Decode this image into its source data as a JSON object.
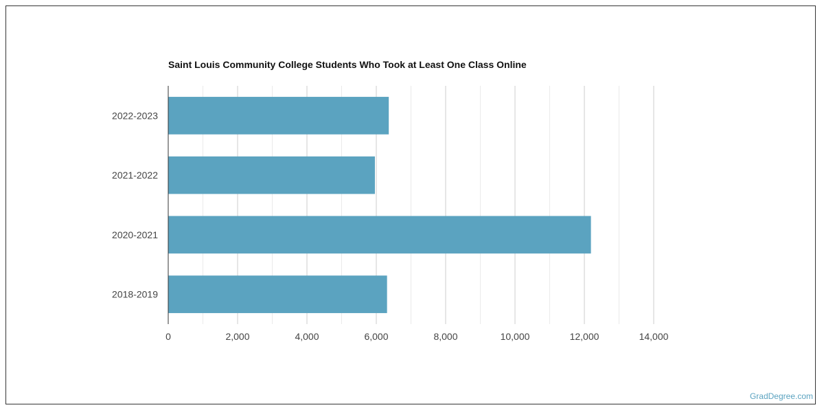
{
  "chart_data": {
    "type": "bar",
    "orientation": "horizontal",
    "title": "Saint Louis Community College Students Who Took at Least One Class Online",
    "categories": [
      "2022-2023",
      "2021-2022",
      "2020-2021",
      "2018-2019"
    ],
    "values": [
      6360,
      5960,
      12190,
      6310
    ],
    "xlim": [
      0,
      14000
    ],
    "xticks": [
      "0",
      "2,000",
      "4,000",
      "6,000",
      "8,000",
      "10,000",
      "12,000",
      "14,000"
    ],
    "xlabel": "",
    "ylabel": "",
    "grid": true,
    "bar_color": "#5ba3c0"
  },
  "credit": "GradDegree.com"
}
